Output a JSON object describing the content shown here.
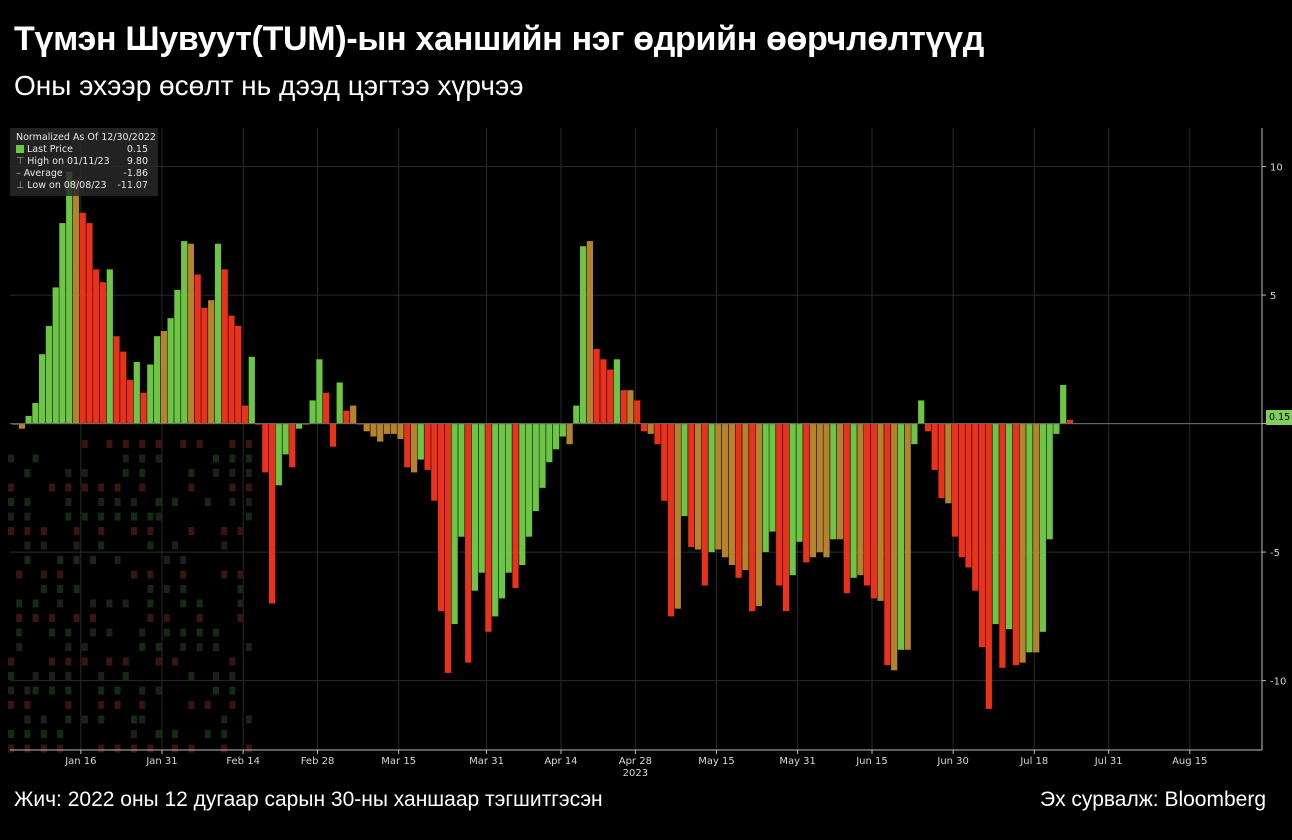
{
  "title": "Түмэн Шувуут(TUM)-ын ханшийн нэг өдрийн өөрчлөлтүүд",
  "subtitle": "Оны эхээр өсөлт нь дээд цэгтээ хүрчээ",
  "note": "Жич: 2022 оны 12 дугаар сарын 30-ны ханшаар тэгшитгэсэн",
  "source": "Эх сурвалж: Bloomberg",
  "legend": {
    "header": "Normalized As Of 12/30/2022",
    "items": [
      {
        "label": "Last Price",
        "value": "0.15"
      },
      {
        "label": "High on 01/11/23",
        "value": "9.80"
      },
      {
        "label": "Average",
        "value": "-1.86"
      },
      {
        "label": "Low on 08/08/23",
        "value": "-11.07"
      }
    ]
  },
  "last_price_tag": "0.15",
  "colors": {
    "up": "#6cc544",
    "down": "#e8321c",
    "mixed": "#b5832e",
    "grid": "#2a2a2a",
    "axis": "#bbbbbb"
  },
  "chart_data": {
    "type": "bar",
    "ylim": [
      -12.7,
      11.5
    ],
    "yticks": [
      10,
      5,
      0,
      -5,
      -10
    ],
    "ytick_labels": [
      "10",
      "5",
      "",
      "-5",
      "-10"
    ],
    "xticks": [
      "Jan 16",
      "Jan 31",
      "Feb 14",
      "Feb 28",
      "Mar 15",
      "Mar 31",
      "Apr 14",
      "Apr 28",
      "May 15",
      "May 31",
      "Jun 15",
      "Jun 30",
      "Jul 18",
      "Jul 31",
      "Aug 15"
    ],
    "year_label": "2023",
    "series": [
      {
        "values": [
          0.0,
          -0.2,
          0.3,
          0.8,
          2.7,
          3.8,
          5.3,
          7.8,
          9.8,
          9.5,
          8.2,
          7.8,
          6.0,
          5.5,
          6.0,
          3.4,
          2.8,
          1.7,
          2.4,
          1.2,
          2.3,
          3.4,
          3.6,
          4.1,
          5.2,
          7.1,
          7.0,
          5.8,
          4.5,
          4.8,
          7.0,
          6.0,
          4.2,
          3.8,
          0.7,
          2.6,
          0.0,
          -1.9,
          -7.0,
          -2.4,
          -1.2,
          -1.7,
          -0.2,
          0.0,
          0.9,
          2.5,
          1.2,
          -0.9,
          1.6,
          0.5,
          0.7,
          0.0,
          -0.3,
          -0.5,
          -0.7,
          -0.4,
          -0.4,
          -0.6,
          -1.7,
          -1.9,
          -1.4,
          -1.8,
          -3.0,
          -7.3,
          -9.7,
          -7.8,
          -4.4,
          -9.3,
          -6.5,
          -5.8,
          -8.1,
          -7.5,
          -6.8,
          -5.8,
          -6.4,
          -5.5,
          -4.4,
          -3.4,
          -2.5,
          -1.5,
          -1.0,
          -0.5,
          -0.8,
          0.7,
          6.9,
          7.1,
          2.9,
          2.5,
          2.1,
          2.5,
          1.3,
          1.3,
          0.9,
          -0.3,
          -0.4,
          -0.8,
          -3.0,
          -7.5,
          -7.2,
          -3.6,
          -4.8,
          -4.9,
          -6.3,
          -5.0,
          -4.9,
          -5.2,
          -5.5,
          -6.0,
          -5.7,
          -7.3,
          -7.1,
          -5.0,
          -4.2,
          -6.3,
          -7.3,
          -5.9,
          -4.6,
          -5.4,
          -5.2,
          -5.0,
          -5.2,
          -4.5,
          -4.5,
          -6.6,
          -6.0,
          -5.9,
          -6.3,
          -6.8,
          -6.9,
          -9.4,
          -9.6,
          -8.8,
          -8.8,
          -0.8,
          0.9,
          -0.3,
          -1.8,
          -2.9,
          -3.1,
          -4.4,
          -5.2,
          -5.6,
          -6.5,
          -8.7,
          -11.1,
          -7.8,
          -9.5,
          -8.0,
          -9.4,
          -9.3,
          -8.9,
          -8.9,
          -8.1,
          -4.5,
          -0.4,
          1.5,
          0.15
        ]
      }
    ]
  }
}
